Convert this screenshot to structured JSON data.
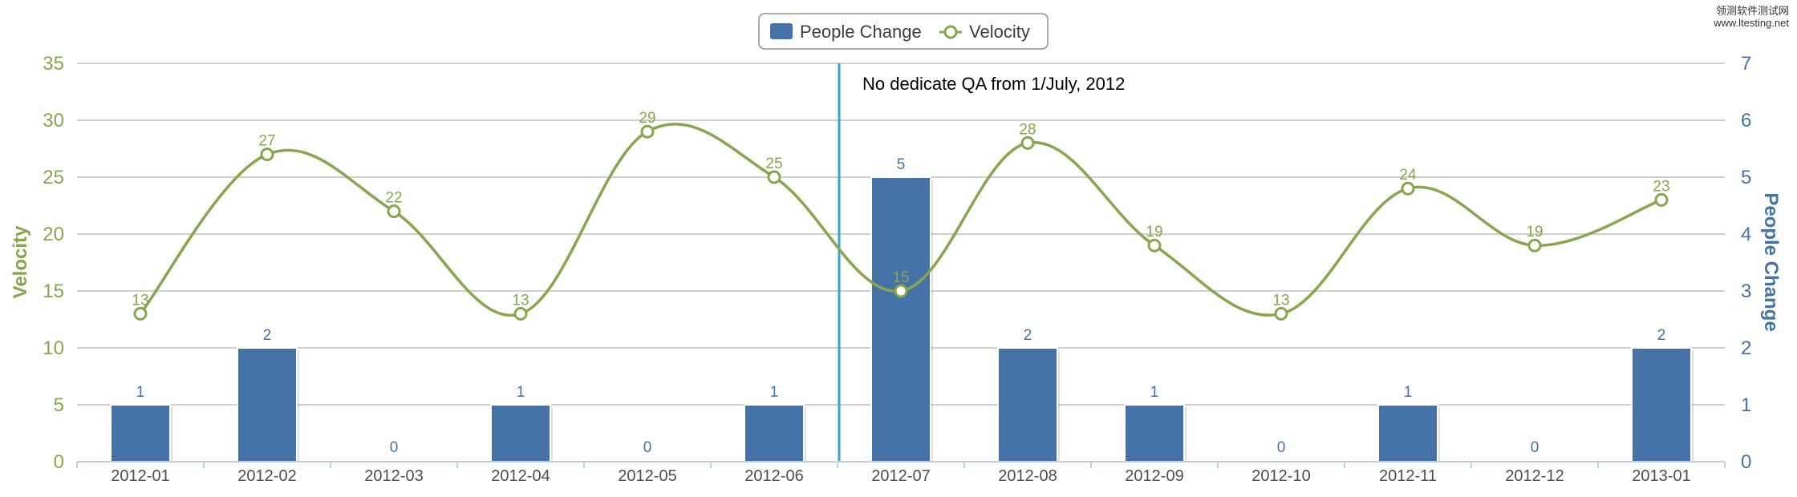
{
  "chart_data": {
    "type": "bar+line",
    "categories": [
      "2012-01",
      "2012-02",
      "2012-03",
      "2012-04",
      "2012-05",
      "2012-06",
      "2012-07",
      "2012-08",
      "2012-09",
      "2012-10",
      "2012-11",
      "2012-12",
      "2013-01"
    ],
    "series": [
      {
        "name": "People Change",
        "type": "bar",
        "axis": "right",
        "color": "#4572a7",
        "values": [
          1,
          2,
          0,
          1,
          0,
          1,
          5,
          2,
          1,
          0,
          1,
          0,
          2
        ]
      },
      {
        "name": "Velocity",
        "type": "line",
        "axis": "left",
        "color": "#89a54e",
        "values": [
          13,
          27,
          22,
          13,
          29,
          25,
          15,
          28,
          19,
          13,
          24,
          19,
          23
        ]
      }
    ],
    "left_axis": {
      "title": "Velocity",
      "min": 0,
      "max": 35,
      "ticks": [
        "0",
        "5",
        "10",
        "15",
        "20",
        "25",
        "30",
        "35"
      ],
      "color": "#89a54e"
    },
    "right_axis": {
      "title": "People Change",
      "min": 0,
      "max": 7,
      "ticks": [
        "0",
        "1",
        "2",
        "3",
        "4",
        "5",
        "6",
        "7"
      ],
      "color": "#4572a7"
    },
    "annotation": {
      "text": "No dedicate QA from 1/July, 2012",
      "at_category": "2012-07",
      "line_color": "#3aa0d8"
    },
    "legend": {
      "placement": "top-center",
      "items": [
        "People Change",
        "Velocity"
      ]
    },
    "grid": true
  },
  "watermark": {
    "line1": "领测软件测试网",
    "line2": "www.ltesting.net"
  }
}
